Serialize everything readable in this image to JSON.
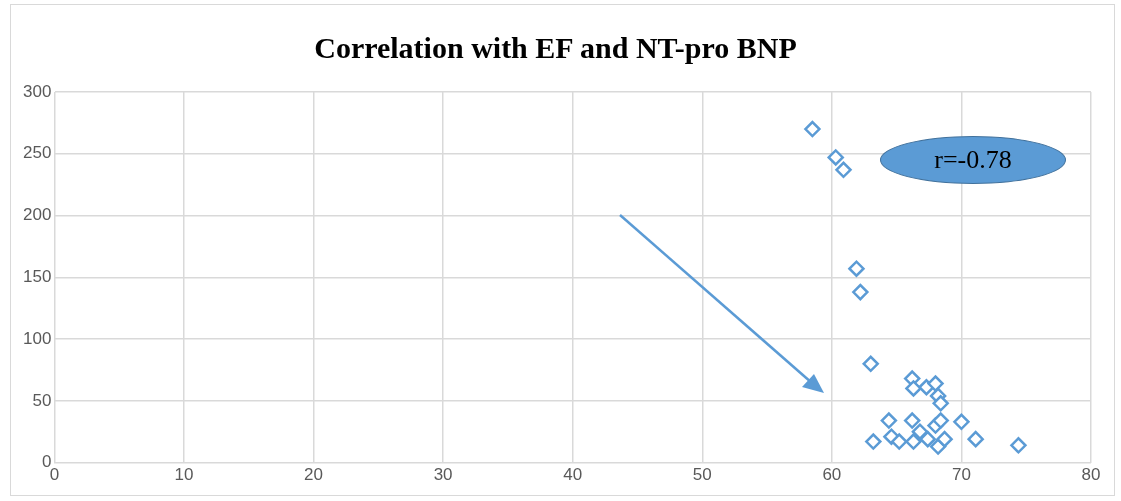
{
  "chart_data": {
    "type": "scatter",
    "title": "Correlation with EF and NT-pro BNP",
    "x": [
      58.5,
      60.3,
      60.9,
      61.9,
      62.2,
      63.0,
      66.2,
      67.3,
      68.0,
      68.2,
      68.4,
      66.3,
      64.4,
      66.2,
      68.0,
      68.4,
      70.0,
      63.2,
      64.6,
      65.2,
      66.3,
      66.8,
      67.4,
      68.2,
      68.7,
      71.1,
      74.4
    ],
    "values": [
      270,
      247,
      237,
      157,
      138,
      80,
      68,
      61,
      64,
      54,
      48,
      60,
      34,
      34,
      30,
      34,
      33,
      17,
      21,
      17,
      17,
      25,
      19,
      13,
      19,
      19,
      14
    ],
    "color": "#5b9bd5",
    "marker": "diamond",
    "xlim": [
      0,
      80
    ],
    "xticks": [
      0,
      10,
      20,
      30,
      40,
      50,
      60,
      70,
      80
    ],
    "ylim": [
      0,
      300
    ],
    "yticks": [
      0,
      50,
      100,
      150,
      200,
      250,
      300
    ],
    "grid": true,
    "annotations": [
      "r=-0.78"
    ]
  }
}
